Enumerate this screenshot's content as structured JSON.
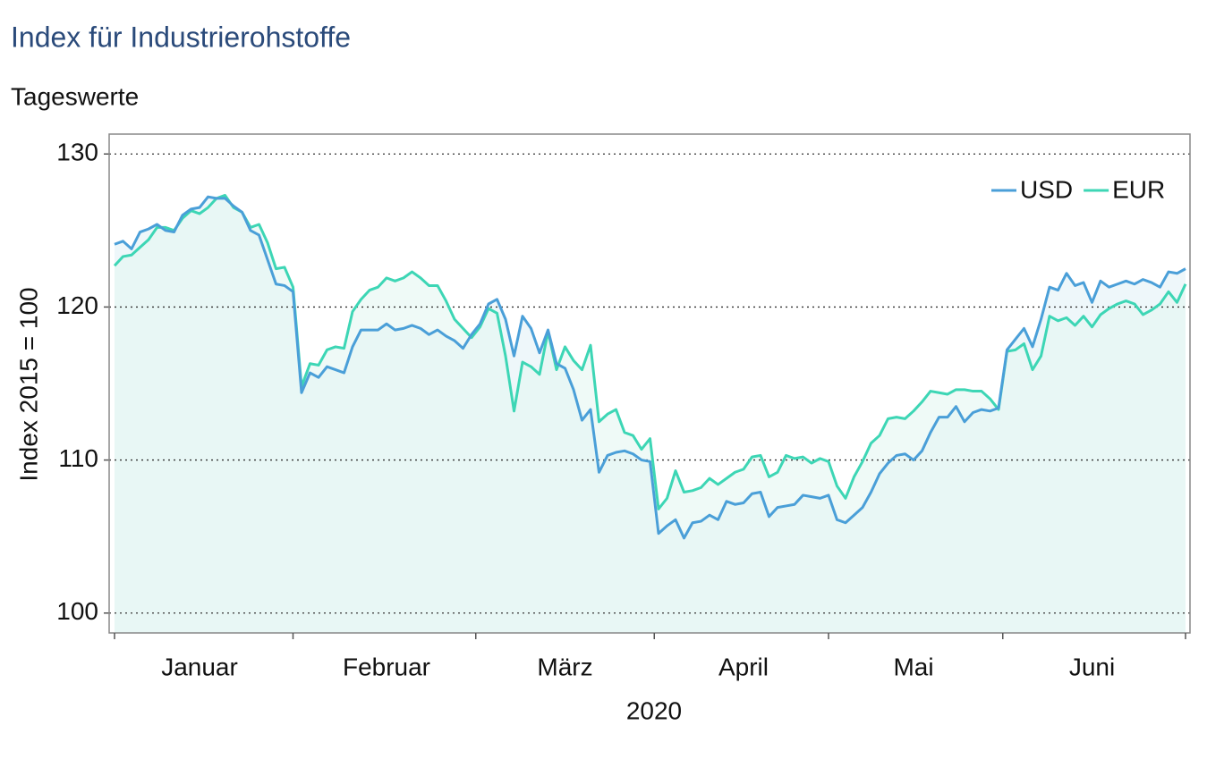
{
  "chart_data": {
    "type": "line",
    "title": "Index für Industrierohstoffe",
    "subtitle": "Tageswerte",
    "y_label": "Index 2015 = 100",
    "x_label": "2020",
    "categories": [
      null,
      null,
      null,
      null,
      null,
      null,
      null,
      null,
      null,
      null,
      "Januar",
      null,
      null,
      null,
      null,
      null,
      null,
      null,
      null,
      null,
      null,
      null,
      null,
      null,
      null,
      null,
      null,
      null,
      null,
      null,
      null,
      null,
      "Februar",
      null,
      null,
      null,
      null,
      null,
      null,
      null,
      null,
      null,
      null,
      null,
      null,
      null,
      null,
      null,
      null,
      null,
      null,
      null,
      null,
      "März",
      null,
      null,
      null,
      null,
      null,
      null,
      null,
      null,
      null,
      null,
      null,
      null,
      null,
      null,
      null,
      null,
      null,
      null,
      null,
      null,
      "April",
      null,
      null,
      null,
      null,
      null,
      null,
      null,
      null,
      null,
      null,
      null,
      null,
      null,
      null,
      null,
      null,
      null,
      null,
      null,
      "Mai",
      null,
      null,
      null,
      null,
      null,
      null,
      null,
      null,
      null,
      null,
      null,
      null,
      null,
      null,
      null,
      null,
      null,
      null,
      null,
      null,
      "Juni",
      null,
      null,
      null,
      null,
      null,
      null,
      null,
      null,
      null,
      null,
      null
    ],
    "series": [
      {
        "name": "USD",
        "color": "#4a9fd8",
        "values": [
          124.1,
          124.3,
          123.8,
          124.9,
          125.1,
          125.4,
          125.0,
          124.9,
          126.0,
          126.4,
          126.5,
          127.2,
          127.1,
          127.1,
          126.6,
          126.2,
          125.0,
          124.7,
          123.1,
          121.5,
          121.4,
          121.0,
          114.4,
          115.7,
          115.4,
          116.1,
          115.9,
          115.7,
          117.4,
          118.5,
          118.5,
          118.5,
          118.9,
          118.5,
          118.6,
          118.8,
          118.6,
          118.2,
          118.5,
          118.1,
          117.8,
          117.3,
          118.2,
          118.9,
          120.2,
          120.5,
          119.2,
          116.8,
          119.4,
          118.6,
          117.0,
          118.5,
          116.3,
          116.0,
          114.6,
          112.6,
          113.3,
          109.2,
          110.3,
          110.5,
          110.6,
          110.4,
          110.0,
          109.9,
          105.2,
          105.7,
          106.1,
          104.9,
          105.9,
          106.0,
          106.4,
          106.1,
          107.3,
          107.1,
          107.2,
          107.8,
          107.9,
          106.3,
          106.9,
          107.0,
          107.1,
          107.7,
          107.6,
          107.5,
          107.7,
          106.1,
          105.9,
          106.4,
          106.9,
          107.9,
          109.1,
          109.8,
          110.3,
          110.4,
          110.0,
          110.6,
          111.8,
          112.8,
          112.8,
          113.5,
          112.5,
          113.1,
          113.3,
          113.2,
          113.4,
          117.2,
          117.9,
          118.6,
          117.4,
          119.2,
          121.3,
          121.1,
          122.2,
          121.4,
          121.6,
          120.3,
          121.7,
          121.3,
          121.5,
          121.7,
          121.5,
          121.8,
          121.6,
          121.3,
          122.3,
          122.2,
          122.5
        ]
      },
      {
        "name": "EUR",
        "color": "#3dd6b5",
        "values": [
          122.7,
          123.3,
          123.4,
          123.9,
          124.4,
          125.2,
          125.2,
          125.0,
          125.8,
          126.3,
          126.1,
          126.5,
          127.1,
          127.3,
          126.5,
          126.2,
          125.2,
          125.4,
          124.2,
          122.5,
          122.6,
          121.3,
          114.8,
          116.3,
          116.2,
          117.2,
          117.4,
          117.3,
          119.7,
          120.5,
          121.1,
          121.3,
          121.9,
          121.7,
          121.9,
          122.3,
          121.9,
          121.4,
          121.4,
          120.4,
          119.2,
          118.6,
          118.0,
          118.7,
          119.9,
          119.6,
          116.8,
          113.2,
          116.4,
          116.1,
          115.6,
          118.4,
          115.9,
          117.4,
          116.5,
          115.9,
          117.5,
          112.5,
          113.0,
          113.3,
          111.8,
          111.6,
          110.7,
          111.4,
          106.8,
          107.5,
          109.3,
          107.9,
          108.0,
          108.2,
          108.8,
          108.4,
          108.8,
          109.2,
          109.4,
          110.2,
          110.3,
          108.9,
          109.2,
          110.3,
          110.1,
          110.2,
          109.8,
          110.1,
          109.9,
          108.3,
          107.5,
          108.9,
          109.9,
          111.1,
          111.6,
          112.7,
          112.8,
          112.7,
          113.2,
          113.8,
          114.5,
          114.4,
          114.3,
          114.6,
          114.6,
          114.5,
          114.5,
          114.0,
          113.3,
          117.1,
          117.2,
          117.6,
          115.9,
          116.8,
          119.4,
          119.1,
          119.3,
          118.8,
          119.4,
          118.7,
          119.5,
          119.9,
          120.2,
          120.4,
          120.2,
          119.5,
          119.8,
          120.2,
          121.0,
          120.3,
          121.5
        ]
      }
    ],
    "ylim": [
      98.7,
      131.3
    ],
    "yticks": [
      100,
      110,
      120,
      130
    ],
    "grid": true,
    "legend": "top-right"
  }
}
